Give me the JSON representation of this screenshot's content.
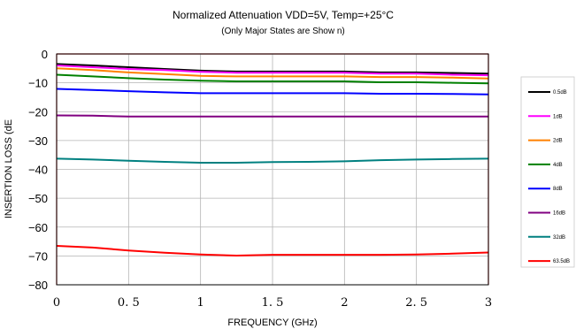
{
  "chart_data": {
    "type": "line",
    "title": "Normalized Attenuation VDD=5V, Temp=+25°C",
    "subtitle": "(Only Major States are Show n)",
    "xlabel": "FREQUENCY (GHz)",
    "ylabel": "INSERTION LOSS (dE",
    "xlim": [
      0,
      3
    ],
    "ylim": [
      -80,
      0
    ],
    "xticks": [
      0,
      0.5,
      1,
      1.5,
      2,
      2.5,
      3
    ],
    "xtick_labels": [
      "0",
      "0. 5",
      "1",
      "1. 5",
      "2",
      "2. 5",
      "3"
    ],
    "yticks": [
      0,
      -10,
      -20,
      -30,
      -40,
      -50,
      -60,
      -70,
      -80
    ],
    "ytick_labels": [
      "0",
      "−10",
      "−20",
      "−30",
      "−40",
      "−50",
      "−60",
      "−70",
      "−80"
    ],
    "grid": true,
    "legend_position": "right",
    "x": [
      0,
      0.25,
      0.5,
      0.75,
      1,
      1.25,
      1.5,
      1.75,
      2,
      2.25,
      2.5,
      2.75,
      3
    ],
    "series": [
      {
        "name": "0.5dB",
        "color": "#000000",
        "values": [
          -3.5,
          -4.0,
          -4.6,
          -5.2,
          -5.8,
          -6.1,
          -6.1,
          -6.1,
          -6.1,
          -6.4,
          -6.4,
          -6.6,
          -6.8
        ]
      },
      {
        "name": "1dB",
        "color": "#ff00ff",
        "values": [
          -4.0,
          -4.6,
          -5.2,
          -5.6,
          -6.2,
          -6.5,
          -6.5,
          -6.5,
          -6.5,
          -6.8,
          -6.8,
          -7.2,
          -7.4
        ]
      },
      {
        "name": "2dB",
        "color": "#ff8000",
        "values": [
          -5.0,
          -5.6,
          -6.4,
          -7.0,
          -7.6,
          -7.8,
          -7.8,
          -7.8,
          -7.8,
          -8.0,
          -8.0,
          -8.2,
          -8.5
        ]
      },
      {
        "name": "4dB",
        "color": "#008000",
        "values": [
          -7.2,
          -7.8,
          -8.4,
          -8.9,
          -9.3,
          -9.5,
          -9.5,
          -9.5,
          -9.5,
          -9.8,
          -9.8,
          -10.0,
          -10.2
        ]
      },
      {
        "name": "8dB",
        "color": "#0000ff",
        "values": [
          -12.1,
          -12.5,
          -12.9,
          -13.3,
          -13.6,
          -13.6,
          -13.6,
          -13.6,
          -13.6,
          -13.8,
          -13.8,
          -13.9,
          -14.0
        ]
      },
      {
        "name": "16dB",
        "color": "#800080",
        "values": [
          -21.3,
          -21.4,
          -21.7,
          -21.7,
          -21.7,
          -21.7,
          -21.7,
          -21.7,
          -21.7,
          -21.7,
          -21.7,
          -21.7,
          -21.7
        ]
      },
      {
        "name": "32dB",
        "color": "#008080",
        "values": [
          -36.3,
          -36.6,
          -37.0,
          -37.4,
          -37.7,
          -37.7,
          -37.5,
          -37.4,
          -37.2,
          -36.8,
          -36.6,
          -36.4,
          -36.3
        ]
      },
      {
        "name": "63.5dB",
        "color": "#ff0000",
        "values": [
          -66.5,
          -67.1,
          -68.1,
          -68.9,
          -69.5,
          -69.9,
          -69.6,
          -69.6,
          -69.6,
          -69.6,
          -69.5,
          -69.2,
          -68.8
        ]
      }
    ]
  }
}
